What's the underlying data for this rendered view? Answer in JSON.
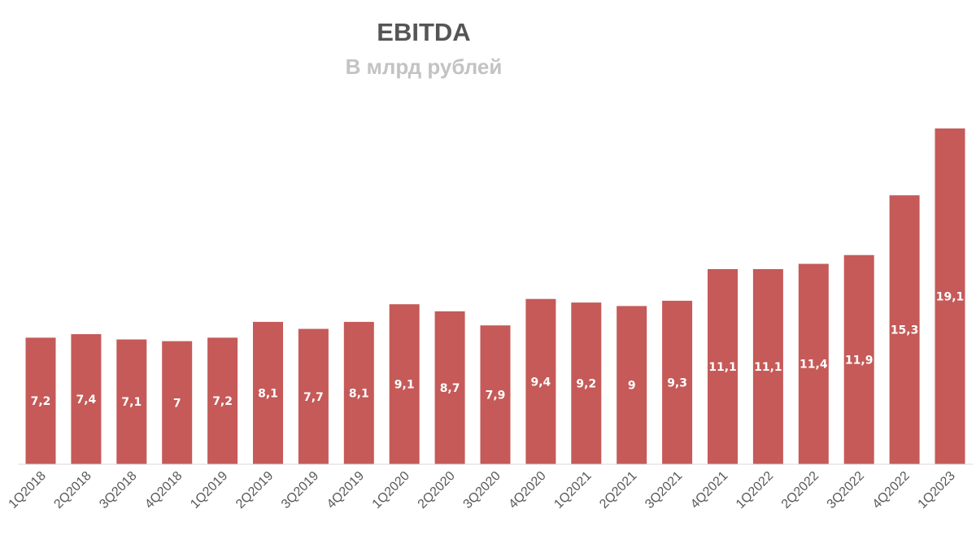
{
  "chart_data": {
    "type": "bar",
    "title": "EBITDA",
    "subtitle": "В млрд рублей",
    "categories": [
      "1Q2018",
      "2Q2018",
      "3Q2018",
      "4Q2018",
      "1Q2019",
      "2Q2019",
      "3Q2019",
      "4Q2019",
      "1Q2020",
      "2Q2020",
      "3Q2020",
      "4Q2020",
      "1Q2021",
      "2Q2021",
      "3Q2021",
      "4Q2021",
      "1Q2022",
      "2Q2022",
      "3Q2022",
      "4Q2022",
      "1Q2023"
    ],
    "values": [
      7.2,
      7.4,
      7.1,
      7,
      7.2,
      8.1,
      7.7,
      8.1,
      9.1,
      8.7,
      7.9,
      9.4,
      9.2,
      9,
      9.3,
      11.1,
      11.1,
      11.4,
      11.9,
      15.3,
      19.1
    ],
    "value_labels": [
      "7,2",
      "7,4",
      "7,1",
      "7",
      "7,2",
      "8,1",
      "7,7",
      "8,1",
      "9,1",
      "8,7",
      "7,9",
      "9,4",
      "9,2",
      "9",
      "9,3",
      "11,1",
      "11,1",
      "11,4",
      "11,9",
      "15,3",
      "19,1"
    ],
    "ylim": [
      0,
      19.1
    ],
    "bar_color": "#c55a58",
    "grid": false,
    "legend": "none"
  }
}
